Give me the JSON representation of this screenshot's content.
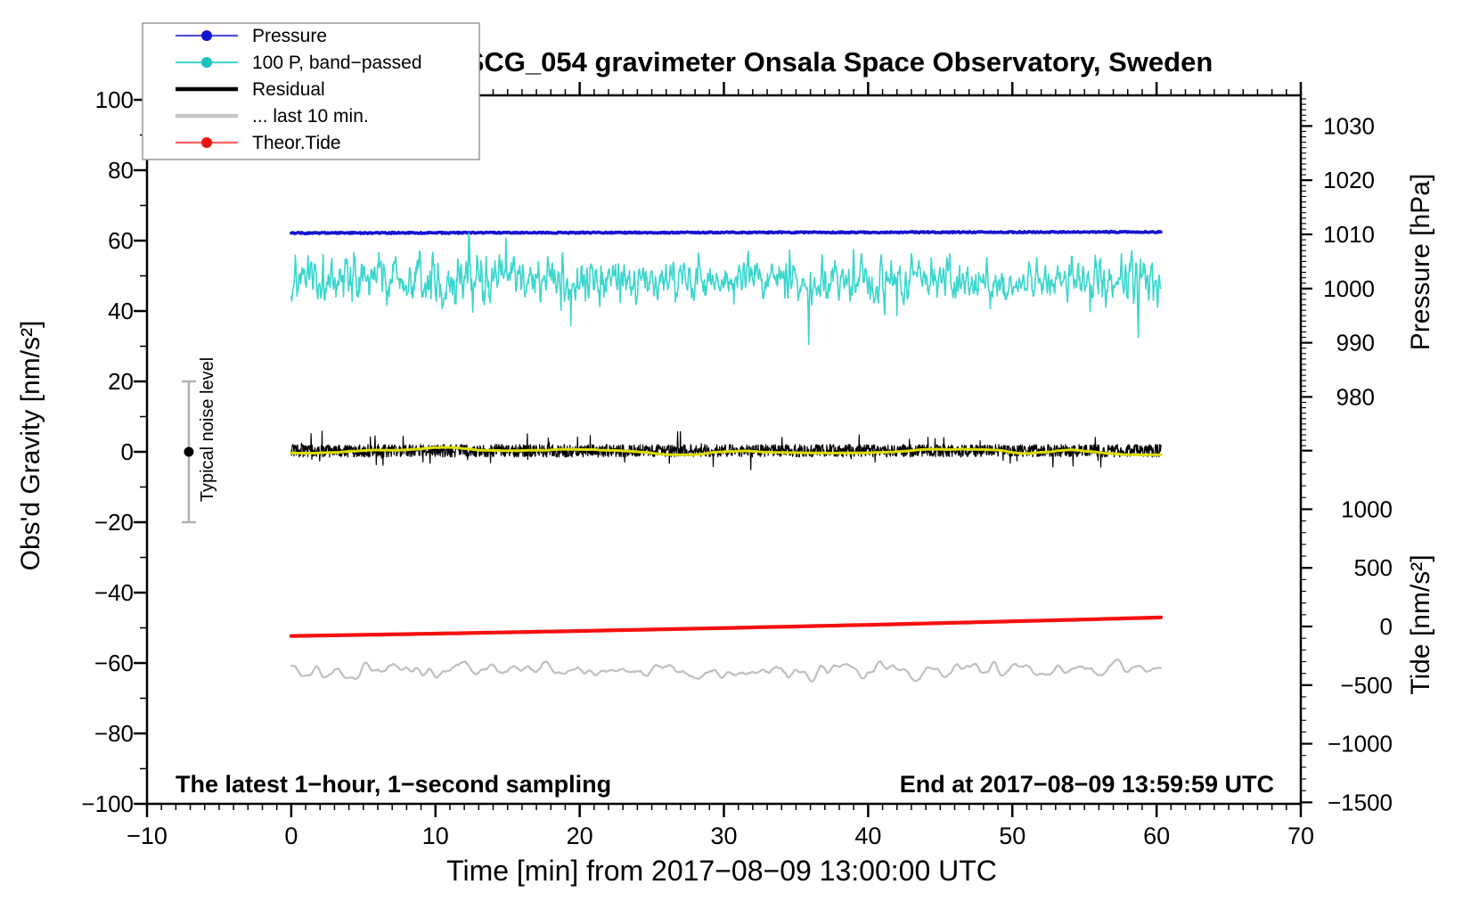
{
  "legend": {
    "position": "top-left",
    "items": [
      {
        "label": "Pressure",
        "color": "#1414d2",
        "line_color": "#5353d8",
        "marker": "dot",
        "thin": true
      },
      {
        "label": "100 P, band−passed",
        "color": "#18c2bb",
        "line_color": "#4bd8d0",
        "marker": "dot",
        "thin": true
      },
      {
        "label": "Residual",
        "color": "#000000",
        "line_color": "#000000",
        "marker": "none",
        "thin": false
      },
      {
        "label": "... last 10 min.",
        "color": "#c6c6c6",
        "line_color": "#c6c6c6",
        "marker": "none",
        "thin": false
      },
      {
        "label": "Theor.Tide",
        "color": "#f21111",
        "line_color": "#ff5f5f",
        "marker": "dot",
        "thin": true
      }
    ]
  },
  "chart_data": {
    "type": "line",
    "title": "SCG_054 gravimeter Onsala Space Observatory, Sweden",
    "annotations": {
      "sampling": "The latest 1−hour, 1−second sampling",
      "end_time": "End at 2017−08−09 13:59:59 UTC"
    },
    "axes": {
      "x": {
        "label": "Time [min] from 2017−08−09 13:00:00 UTC",
        "range": [
          -10,
          70
        ],
        "major_ticks": [
          -10,
          0,
          10,
          20,
          30,
          40,
          50,
          60,
          70
        ],
        "minor_tick_step": 1,
        "grid": false
      },
      "y_left_gravity": {
        "label": "Obs'd Gravity [nm/s²]",
        "range": [
          -100,
          100
        ],
        "major_ticks": [
          100,
          80,
          60,
          40,
          20,
          0,
          -20,
          -40,
          -60,
          -80,
          -100
        ],
        "minor_tick_step": 10
      },
      "y_right_pressure": {
        "label": "Pressure [hPa]",
        "labeled_ticks": [
          1030,
          1020,
          1010,
          1000,
          990,
          980
        ],
        "minor_tick_step": 1,
        "visible_range": [
          971,
          1035
        ]
      },
      "y_right_tide": {
        "label": "Tide [nm/s²]",
        "labeled_ticks": [
          1000,
          500,
          0,
          -500,
          -1000,
          -1500
        ],
        "unlabeled_major_ticks": [
          1500
        ],
        "minor_tick_step": 100,
        "visible_range": [
          -1500,
          1500
        ]
      }
    },
    "series": [
      {
        "id": "pressure",
        "legend": "Pressure",
        "axis": "pressure",
        "style": "noisy-flat",
        "color": "#1414d2",
        "line_width": 3.6,
        "x_span_min": [
          0,
          60.3
        ],
        "value_start_hpa": 1010.25,
        "value_end_hpa": 1010.45,
        "noise_hpa": 0.12,
        "points": 900,
        "seed": 7
      },
      {
        "id": "band_passed",
        "legend": "100 P, band−passed",
        "axis": "gravity",
        "style": "band-noise",
        "color": "#3ad6ce",
        "line_width": 1.6,
        "x_span_min": [
          0,
          60.3
        ],
        "center": 49,
        "typical_amplitude": 4.3,
        "extreme_range": [
          32,
          60
        ],
        "envelope_growth": 0.3,
        "random_spikes": 26,
        "points": 1500,
        "seed": 11,
        "big_spikes": [
          {
            "x": 12.6,
            "depth": -17
          },
          {
            "x": 12.3,
            "depth": 9
          },
          {
            "x": 21.4,
            "depth": -11
          },
          {
            "x": 35.9,
            "depth": -12
          },
          {
            "x": 42.0,
            "depth": -14
          },
          {
            "x": 55.4,
            "depth": -10
          }
        ]
      },
      {
        "id": "residual",
        "legend": "Residual",
        "axis": "gravity",
        "style": "white-noise",
        "color": "#000000",
        "line_width": 1.2,
        "x_span_min": [
          0,
          60.3
        ],
        "center": 0.3,
        "typical_amplitude": 1.8,
        "spike_amplitude": 4.5,
        "spike_count": 60,
        "points": 2200,
        "seed": 23
      },
      {
        "id": "residual_smooth",
        "legend": null,
        "axis": "gravity",
        "style": "smooth-noise",
        "color": "#dcdc00",
        "line_width": 3,
        "x_span_min": [
          0,
          60.3
        ],
        "center": 0.3,
        "typical_amplitude": 0.55,
        "smooth_window": 12,
        "points": 450,
        "seed": 31
      },
      {
        "id": "theor_tide",
        "legend": "Theor.Tide",
        "axis": "tide",
        "style": "quadratic",
        "color": "#f61010",
        "line_width": 4.2,
        "x_span_min": [
          0,
          60.3
        ],
        "tide_start": -81,
        "tide_end": 76,
        "coeffs": [
          -81,
          1.9,
          0.012
        ],
        "points": 100
      },
      {
        "id": "residual_last10",
        "legend": "... last 10 min.",
        "axis": "gravity",
        "style": "smooth-noise",
        "color": "#bfbfbf",
        "line_width": 2.2,
        "x_span_min": [
          0,
          60.3
        ],
        "center": -62,
        "typical_amplitude": 1.15,
        "smooth_window": 2,
        "points": 650,
        "seed": 41
      }
    ],
    "noise_bar": {
      "label": "Typical noise level",
      "x_min": -7.1,
      "center": 0,
      "range": [
        -20,
        20
      ],
      "bar_color": "#b0b0b0",
      "dot_color": "#000000"
    }
  }
}
